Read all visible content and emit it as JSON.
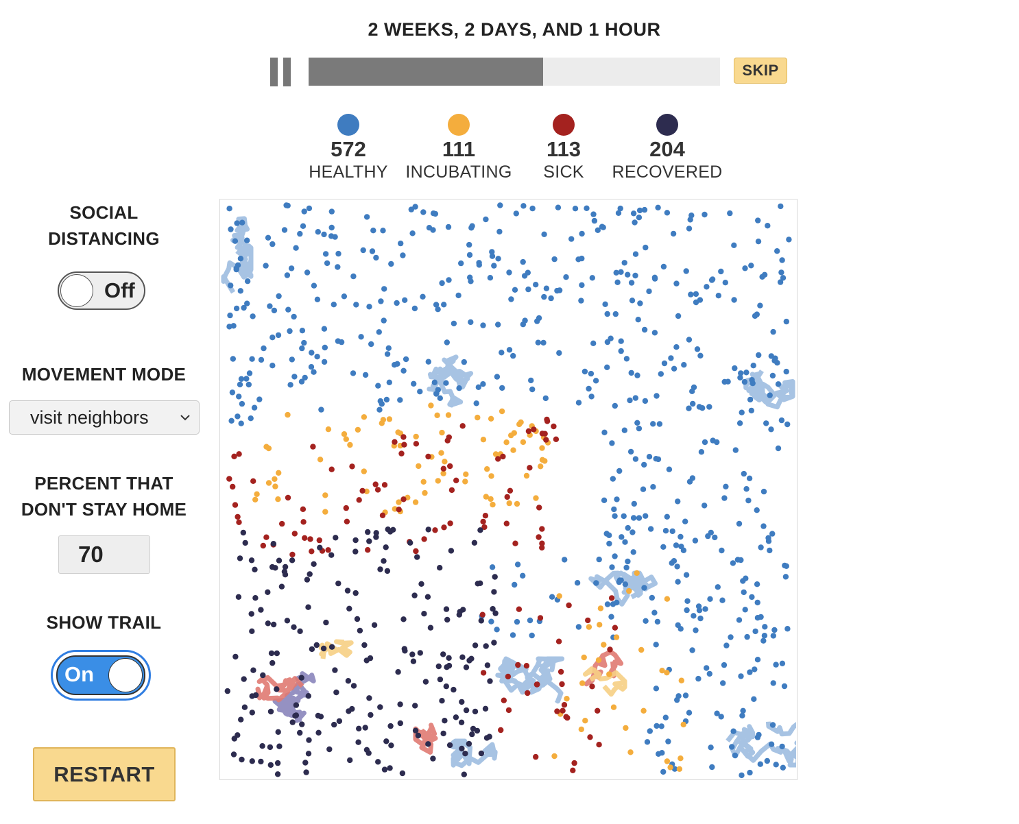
{
  "header": {
    "time_label": "2 WEEKS, 2 DAYS, AND 1 HOUR",
    "progress_fraction": 0.57,
    "skip_label": "SKIP"
  },
  "legend": [
    {
      "count": "572",
      "label": "HEALTHY",
      "color": "#3f7cc0"
    },
    {
      "count": "111",
      "label": "INCUBATING",
      "color": "#f4ad3d"
    },
    {
      "count": "113",
      "label": "SICK",
      "color": "#a4221f"
    },
    {
      "count": "204",
      "label": "RECOVERED",
      "color": "#2d2c4f"
    }
  ],
  "controls": {
    "social_distancing": {
      "title_line1": "SOCIAL",
      "title_line2": "DISTANCING",
      "state_label": "Off"
    },
    "movement_mode": {
      "title": "MOVEMENT MODE",
      "selected": "visit neighbors"
    },
    "percent": {
      "title_line1": "PERCENT THAT",
      "title_line2": "DON'T STAY HOME",
      "value": "70"
    },
    "show_trail": {
      "title": "SHOW TRAIL",
      "state_label": "On"
    },
    "restart_label": "RESTART"
  },
  "colors": {
    "healthy": "#3f7cc0",
    "incubating": "#f4ad3d",
    "sick": "#a4221f",
    "recovered": "#2d2c4f",
    "trail_healthy": "#9dbde0",
    "trail_sick": "#e07a72",
    "trail_recovered": "#8a85bb",
    "trail_incubating": "#f6cf84"
  }
}
